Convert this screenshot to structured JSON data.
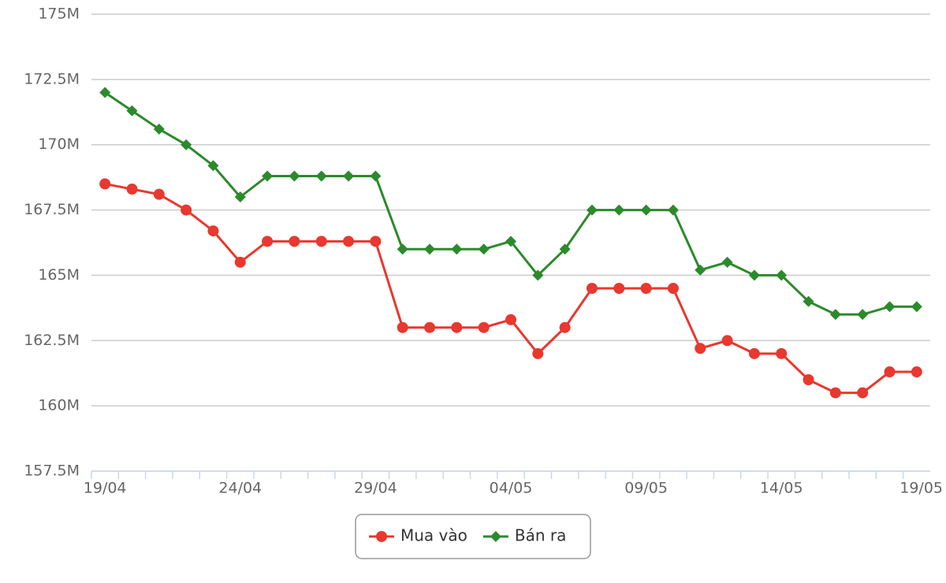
{
  "chart_data": {
    "type": "line",
    "categories": [
      "19/04",
      null,
      null,
      null,
      null,
      "24/04",
      null,
      null,
      null,
      null,
      "29/04",
      null,
      null,
      null,
      null,
      "04/05",
      null,
      null,
      null,
      null,
      "09/05",
      null,
      null,
      null,
      null,
      "14/05",
      null,
      null,
      null,
      null,
      "19/05"
    ],
    "series": [
      {
        "name": "Mua vào",
        "color": "#e8382f",
        "marker": "circle",
        "values": [
          168.5,
          168.3,
          168.1,
          167.5,
          166.7,
          165.5,
          166.3,
          166.3,
          166.3,
          166.3,
          166.3,
          163.0,
          163.0,
          163.0,
          163.0,
          163.3,
          162.0,
          163.0,
          164.5,
          164.5,
          164.5,
          164.5,
          162.2,
          162.5,
          162.0,
          162.0,
          161.0,
          160.5,
          160.5,
          161.3,
          161.3
        ]
      },
      {
        "name": "Bán ra",
        "color": "#2b8a2b",
        "marker": "diamond",
        "values": [
          172.0,
          171.3,
          170.6,
          170.0,
          169.2,
          168.0,
          168.8,
          168.8,
          168.8,
          168.8,
          168.8,
          166.0,
          166.0,
          166.0,
          166.0,
          166.3,
          165.0,
          166.0,
          167.5,
          167.5,
          167.5,
          167.5,
          165.2,
          165.5,
          165.0,
          165.0,
          164.0,
          163.5,
          163.5,
          163.8,
          163.8
        ]
      }
    ],
    "ylim": [
      157.5,
      175
    ],
    "yticks": [
      {
        "value": 157.5,
        "label": "157.5M"
      },
      {
        "value": 160,
        "label": "160M"
      },
      {
        "value": 162.5,
        "label": "162.5M"
      },
      {
        "value": 165,
        "label": "165M"
      },
      {
        "value": 167.5,
        "label": "167.5M"
      },
      {
        "value": 170,
        "label": "170M"
      },
      {
        "value": 172.5,
        "label": "172.5M"
      },
      {
        "value": 175,
        "label": "175M"
      }
    ],
    "grid": true,
    "legend": "bottom"
  }
}
